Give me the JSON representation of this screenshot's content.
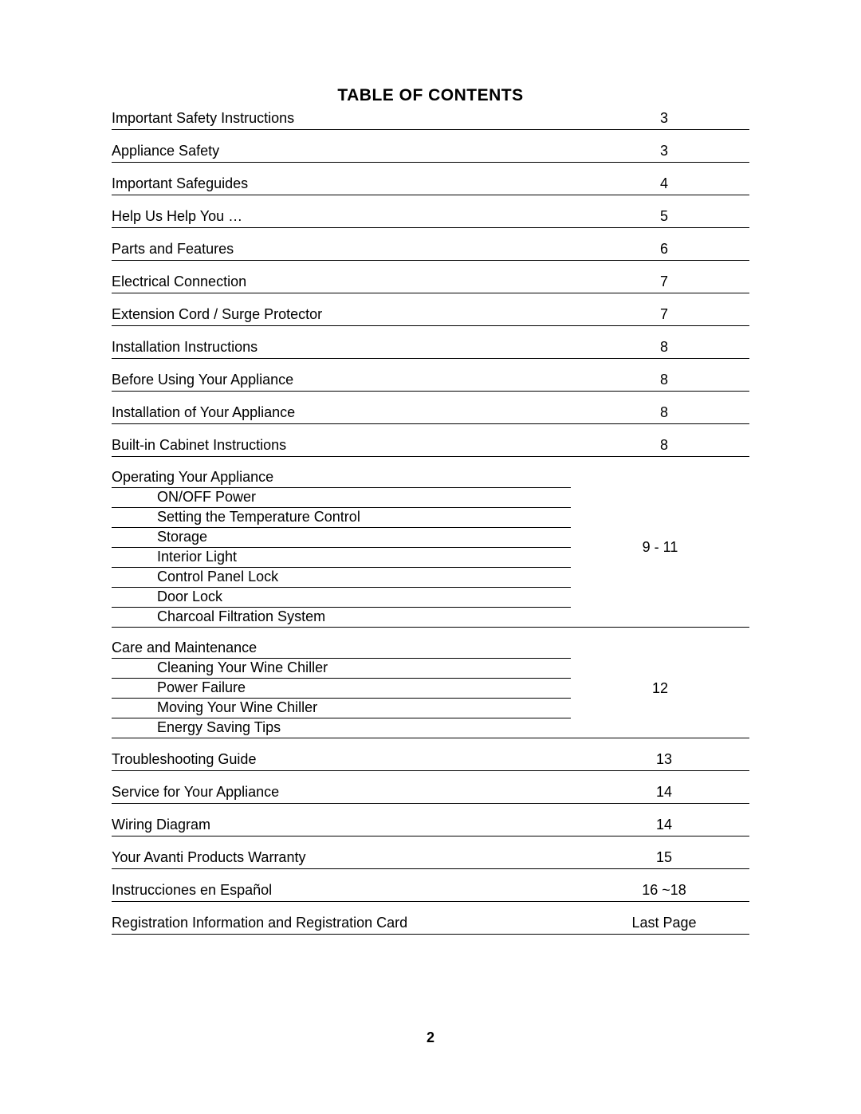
{
  "title": "TABLE OF CONTENTS",
  "page_number": "2",
  "rows": [
    {
      "type": "simple",
      "label": "Important Safety Instructions",
      "page": "3"
    },
    {
      "type": "gap"
    },
    {
      "type": "simple",
      "label": "Appliance Safety",
      "page": "3"
    },
    {
      "type": "gap"
    },
    {
      "type": "simple",
      "label": "Important Safeguides",
      "page": "4"
    },
    {
      "type": "gap"
    },
    {
      "type": "simple",
      "label": "Help Us Help You …",
      "page": "5"
    },
    {
      "type": "gap"
    },
    {
      "type": "simple",
      "label": "Parts and Features",
      "page": "6"
    },
    {
      "type": "gap"
    },
    {
      "type": "simple",
      "label": "Electrical Connection",
      "page": "7"
    },
    {
      "type": "gap"
    },
    {
      "type": "simple",
      "label": "Extension Cord / Surge Protector",
      "page": "7"
    },
    {
      "type": "gap"
    },
    {
      "type": "simple",
      "label": "Installation Instructions",
      "page": "8"
    },
    {
      "type": "gap"
    },
    {
      "type": "simple",
      "label": "Before Using Your Appliance",
      "page": "8"
    },
    {
      "type": "gap"
    },
    {
      "type": "simple",
      "label": "Installation of Your Appliance",
      "page": "8"
    },
    {
      "type": "gap"
    },
    {
      "type": "simple",
      "label": "Built-in Cabinet Instructions",
      "page": "8"
    },
    {
      "type": "gap"
    },
    {
      "type": "group",
      "head": "Operating Your Appliance",
      "page": "9 - 11",
      "subs": [
        "ON/OFF Power",
        "Setting the Temperature Control",
        "Storage",
        "Interior Light",
        "Control Panel Lock",
        "Door Lock",
        "Charcoal Filtration  System"
      ]
    },
    {
      "type": "gap"
    },
    {
      "type": "group",
      "head": "Care and Maintenance",
      "page": "12",
      "subs": [
        "Cleaning Your Wine Chiller",
        "Power Failure",
        "Moving Your Wine Chiller",
        "Energy Saving Tips"
      ]
    },
    {
      "type": "gap"
    },
    {
      "type": "simple",
      "label": "Troubleshooting Guide",
      "page": "13"
    },
    {
      "type": "gap"
    },
    {
      "type": "simple",
      "label": "Service for Your Appliance",
      "page": "14"
    },
    {
      "type": "gap"
    },
    {
      "type": "simple",
      "label": "Wiring Diagram",
      "page": "14"
    },
    {
      "type": "gap"
    },
    {
      "type": "simple",
      "label": "Your Avanti Products Warranty",
      "page": "15"
    },
    {
      "type": "gap"
    },
    {
      "type": "simple",
      "label": "Instrucciones en Español",
      "page": "16 ~18"
    },
    {
      "type": "gap"
    },
    {
      "type": "simple",
      "label": "Registration Information and Registration Card",
      "page": "Last Page"
    }
  ]
}
